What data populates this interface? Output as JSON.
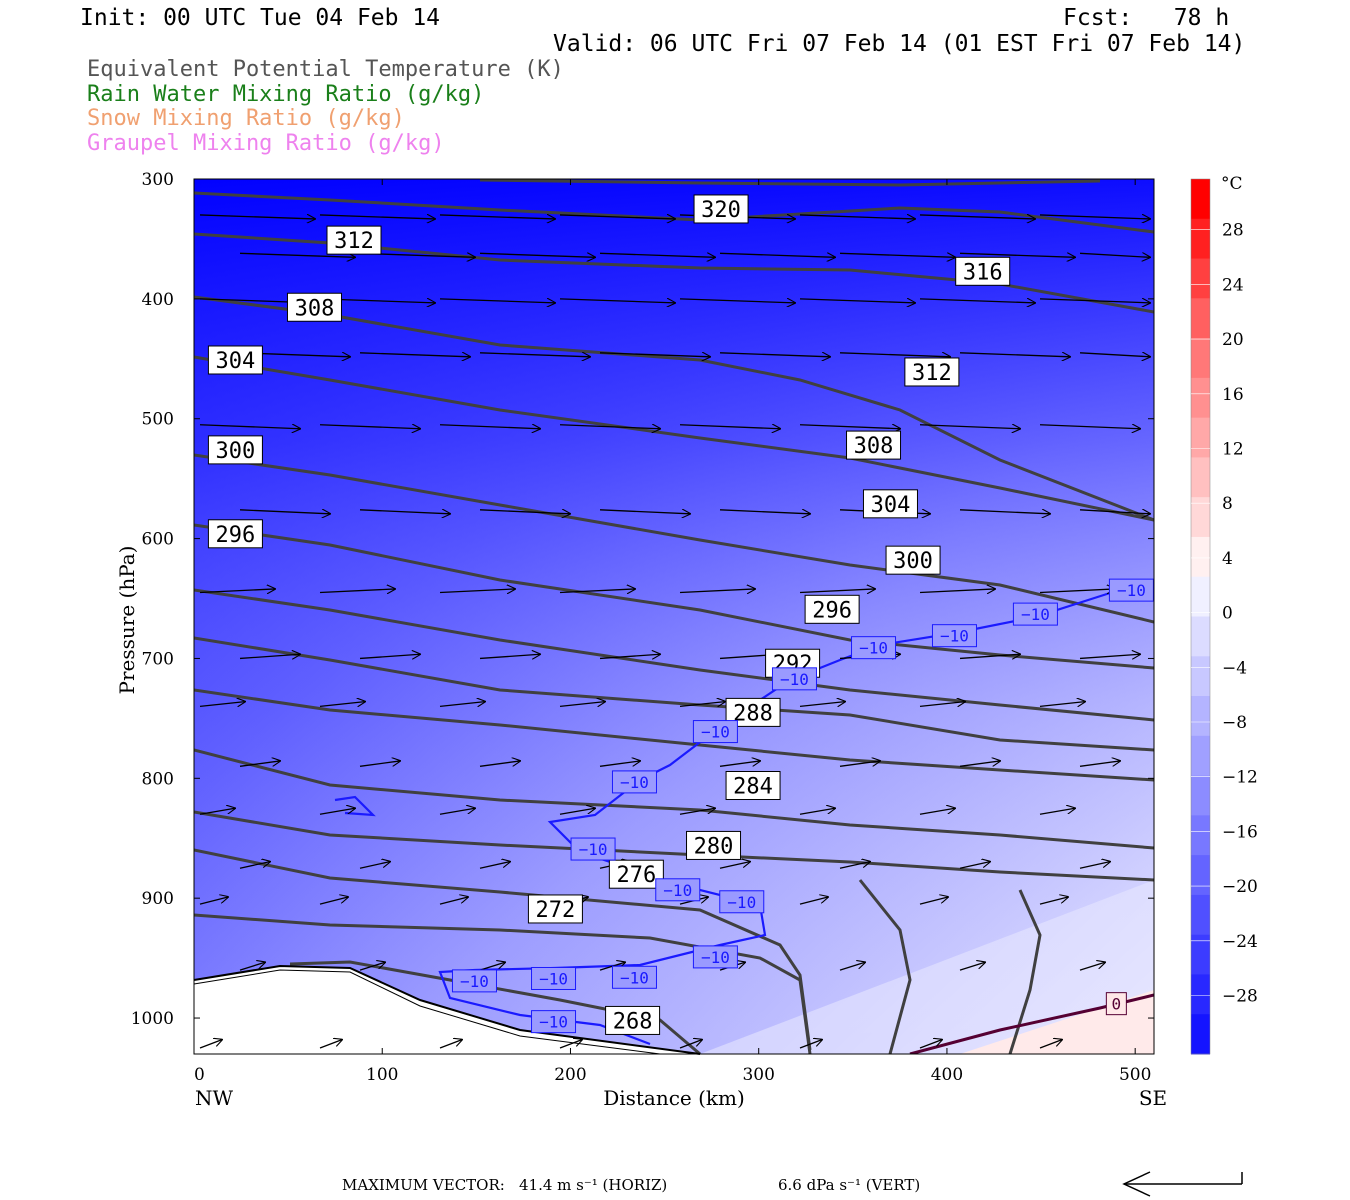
{
  "header": {
    "init": "Init: 00 UTC Tue 04 Feb 14",
    "fcst": "Fcst:   78 h",
    "valid": "Valid: 06 UTC Fri 07 Feb 14 (01 EST Fri 07 Feb 14)"
  },
  "legend": [
    {
      "text": "Equivalent Potential Temperature (K)",
      "color": "#555555"
    },
    {
      "text": "Rain Water Mixing Ratio (g/kg)",
      "color": "#1a7f1a"
    },
    {
      "text": "Snow Mixing Ratio (g/kg)",
      "color": "#f0a070"
    },
    {
      "text": "Graupel Mixing Ratio (g/kg)",
      "color": "#ee82ee"
    }
  ],
  "colors": {
    "theta_e": "#404040",
    "isotherm": "#1a1aff",
    "zero_isotherm": "#550033",
    "vector": "#000000"
  },
  "chart_data": {
    "type": "cross-section",
    "xlabel": "Distance (km)",
    "ylabel": "Pressure (hPa)",
    "xlim": [
      0,
      510
    ],
    "ylim": [
      1030,
      300
    ],
    "x_ticks": [
      "0",
      "100",
      "200",
      "300",
      "400",
      "500"
    ],
    "y_ticks": [
      "300",
      "400",
      "500",
      "600",
      "700",
      "800",
      "900",
      "1000"
    ],
    "left_end": "NW",
    "right_end": "SE",
    "colorbar": {
      "unit": "°C",
      "labels": [
        "28",
        "24",
        "20",
        "16",
        "12",
        "8",
        "4",
        "0",
        "−4",
        "−8",
        "−12",
        "−16",
        "−20",
        "−24",
        "−28"
      ],
      "colors": [
        "#ff0000",
        "#ff2020",
        "#ff4040",
        "#ff6060",
        "#ff7878",
        "#ff9090",
        "#ffa8a8",
        "#ffc0c0",
        "#ffd8d8",
        "#fff0f0",
        "#f0f0ff",
        "#dcdcff",
        "#c8c8ff",
        "#b4b4ff",
        "#a0a0ff",
        "#8c8cff",
        "#7878ff",
        "#6464ff",
        "#5050ff",
        "#3c3cff",
        "#2828ff",
        "#1414ff"
      ]
    },
    "theta_e_labels": [
      {
        "value": "320",
        "x": 280,
        "p": 325
      },
      {
        "value": "316",
        "x": 419,
        "p": 377
      },
      {
        "value": "312",
        "x": 85,
        "p": 351
      },
      {
        "value": "312",
        "x": 392,
        "p": 461
      },
      {
        "value": "308",
        "x": 64,
        "p": 407
      },
      {
        "value": "308",
        "x": 361,
        "p": 522
      },
      {
        "value": "304",
        "x": 22,
        "p": 451
      },
      {
        "value": "304",
        "x": 370,
        "p": 571
      },
      {
        "value": "300",
        "x": 22,
        "p": 526
      },
      {
        "value": "300",
        "x": 382,
        "p": 618
      },
      {
        "value": "296",
        "x": 22,
        "p": 596
      },
      {
        "value": "296",
        "x": 339,
        "p": 659
      },
      {
        "value": "292",
        "x": 318,
        "p": 704
      },
      {
        "value": "288",
        "x": 297,
        "p": 745
      },
      {
        "value": "284",
        "x": 297,
        "p": 806
      },
      {
        "value": "280",
        "x": 276,
        "p": 856
      },
      {
        "value": "276",
        "x": 235,
        "p": 880
      },
      {
        "value": "272",
        "x": 192,
        "p": 909
      },
      {
        "value": "268",
        "x": 233,
        "p": 1002
      }
    ],
    "isotherm_labels": [
      {
        "value": "−10",
        "x": 498,
        "p": 643
      },
      {
        "value": "−10",
        "x": 447,
        "p": 663
      },
      {
        "value": "−10",
        "x": 404,
        "p": 681
      },
      {
        "value": "−10",
        "x": 361,
        "p": 691
      },
      {
        "value": "−10",
        "x": 319,
        "p": 717
      },
      {
        "value": "−10",
        "x": 277,
        "p": 761
      },
      {
        "value": "−10",
        "x": 234,
        "p": 803
      },
      {
        "value": "−10",
        "x": 212,
        "p": 859
      },
      {
        "value": "−10",
        "x": 257,
        "p": 893
      },
      {
        "value": "−10",
        "x": 291,
        "p": 903
      },
      {
        "value": "−10",
        "x": 277,
        "p": 949
      },
      {
        "value": "−10",
        "x": 234,
        "p": 966
      },
      {
        "value": "−10",
        "x": 191,
        "p": 967
      },
      {
        "value": "−10",
        "x": 149,
        "p": 969
      },
      {
        "value": "−10",
        "x": 191,
        "p": 1003
      },
      {
        "value": "0",
        "x": 490,
        "p": 988
      }
    ],
    "footer": {
      "max_vector_label": "MAXIMUM VECTOR:",
      "horiz": "41.4 m s⁻¹ (HORIZ)",
      "vert": "6.6 dPa s⁻¹ (VERT)"
    }
  }
}
